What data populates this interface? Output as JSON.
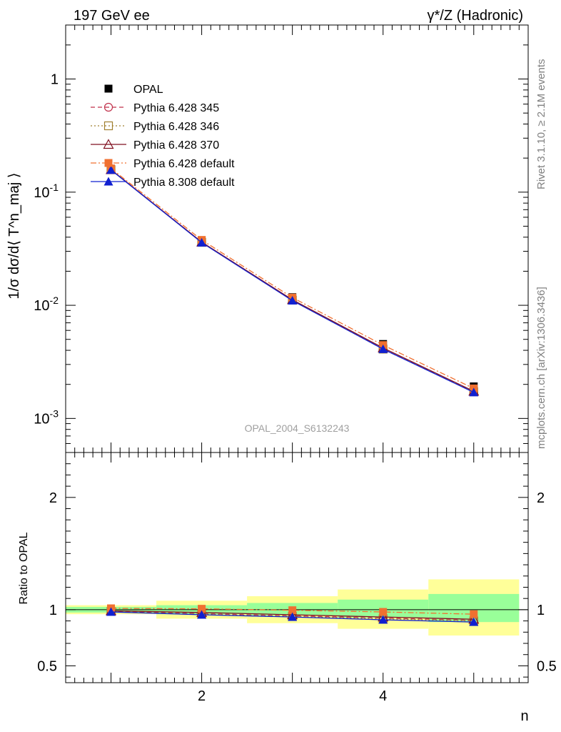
{
  "header": {
    "left": "197 GeV ee",
    "right": "γ*/Z (Hadronic)"
  },
  "side_labels": {
    "rivet": "Rivet 3.1.10, ≥ 2.1M events",
    "mcplots": "mcplots.cern.ch [arXiv:1306.3436]"
  },
  "watermark": "OPAL_2004_S6132243",
  "colors": {
    "opal": "#000000",
    "p345": "#c0304a",
    "p346": "#a08030",
    "p370": "#801020",
    "pdef": "#f07030",
    "p8": "#1020d0",
    "band_inner": "#99ff99",
    "band_outer": "#ffff99"
  },
  "chart_data": [
    {
      "type": "line",
      "panel": "main",
      "ylabel": "1/σ dσ/d⟨ T^n_maj ⟩",
      "yscale": "log",
      "ylim": [
        0.0005,
        3
      ],
      "xlim": [
        0.5,
        5.6
      ],
      "x": [
        1,
        2,
        3,
        4,
        5
      ],
      "y_tick_labels": [
        "10^-3",
        "10^-2",
        "10^-1",
        "1"
      ],
      "series": [
        {
          "key": "opal",
          "name": "OPAL",
          "marker": "square-filled",
          "line": "none",
          "values": [
            0.16,
            0.0375,
            0.0118,
            0.00455,
            0.00192
          ]
        },
        {
          "key": "p345",
          "name": "Pythia 6.428 345",
          "marker": "circle-open",
          "line": "dashed",
          "values": [
            0.158,
            0.0362,
            0.01115,
            0.0041,
            0.00172
          ]
        },
        {
          "key": "p346",
          "name": "Pythia 6.428 346",
          "marker": "square-open",
          "line": "dotted",
          "values": [
            0.158,
            0.036,
            0.0111,
            0.0041,
            0.00172
          ]
        },
        {
          "key": "p370",
          "name": "Pythia 6.428 370",
          "marker": "triangle-open",
          "line": "solid",
          "values": [
            0.158,
            0.0362,
            0.0112,
            0.0042,
            0.00174
          ]
        },
        {
          "key": "pdef",
          "name": "Pythia 6.428 default",
          "marker": "square-filled",
          "line": "dashdot",
          "values": [
            0.162,
            0.0378,
            0.0117,
            0.00445,
            0.00184
          ]
        },
        {
          "key": "p8",
          "name": "Pythia 8.308 default",
          "marker": "triangle-filled",
          "line": "solid",
          "values": [
            0.157,
            0.0358,
            0.011,
            0.0041,
            0.0017
          ]
        }
      ]
    },
    {
      "type": "line",
      "panel": "ratio",
      "xlabel": "n",
      "ylabel": "Ratio to OPAL",
      "ylim": [
        0.35,
        2.4
      ],
      "xlim": [
        0.5,
        5.6
      ],
      "x": [
        1,
        2,
        3,
        4,
        5
      ],
      "x_tick_labels": [
        "2",
        "4"
      ],
      "y_tick_labels": [
        "0.5",
        "1",
        "2"
      ],
      "bands": [
        {
          "x0": 0.5,
          "x1": 1.5,
          "inner": [
            0.975,
            1.025
          ],
          "outer": [
            0.96,
            1.04
          ]
        },
        {
          "x0": 1.5,
          "x1": 2.5,
          "inner": [
            0.96,
            1.04
          ],
          "outer": [
            0.92,
            1.08
          ]
        },
        {
          "x0": 2.5,
          "x1": 3.5,
          "inner": [
            0.95,
            1.06
          ],
          "outer": [
            0.88,
            1.12
          ]
        },
        {
          "x0": 3.5,
          "x1": 4.5,
          "inner": [
            0.93,
            1.09
          ],
          "outer": [
            0.83,
            1.18
          ]
        },
        {
          "x0": 4.5,
          "x1": 5.5,
          "inner": [
            0.89,
            1.14
          ],
          "outer": [
            0.77,
            1.27
          ]
        }
      ],
      "series": [
        {
          "key": "p345",
          "values": [
            0.985,
            0.965,
            0.945,
            0.925,
            0.905
          ]
        },
        {
          "key": "p346",
          "values": [
            0.985,
            0.96,
            0.94,
            0.92,
            0.9
          ]
        },
        {
          "key": "p370",
          "values": [
            0.99,
            0.975,
            0.955,
            0.935,
            0.915
          ]
        },
        {
          "key": "pdef",
          "values": [
            1.012,
            1.008,
            0.995,
            0.98,
            0.96
          ]
        },
        {
          "key": "p8",
          "values": [
            0.98,
            0.955,
            0.935,
            0.91,
            0.89
          ]
        }
      ]
    }
  ]
}
